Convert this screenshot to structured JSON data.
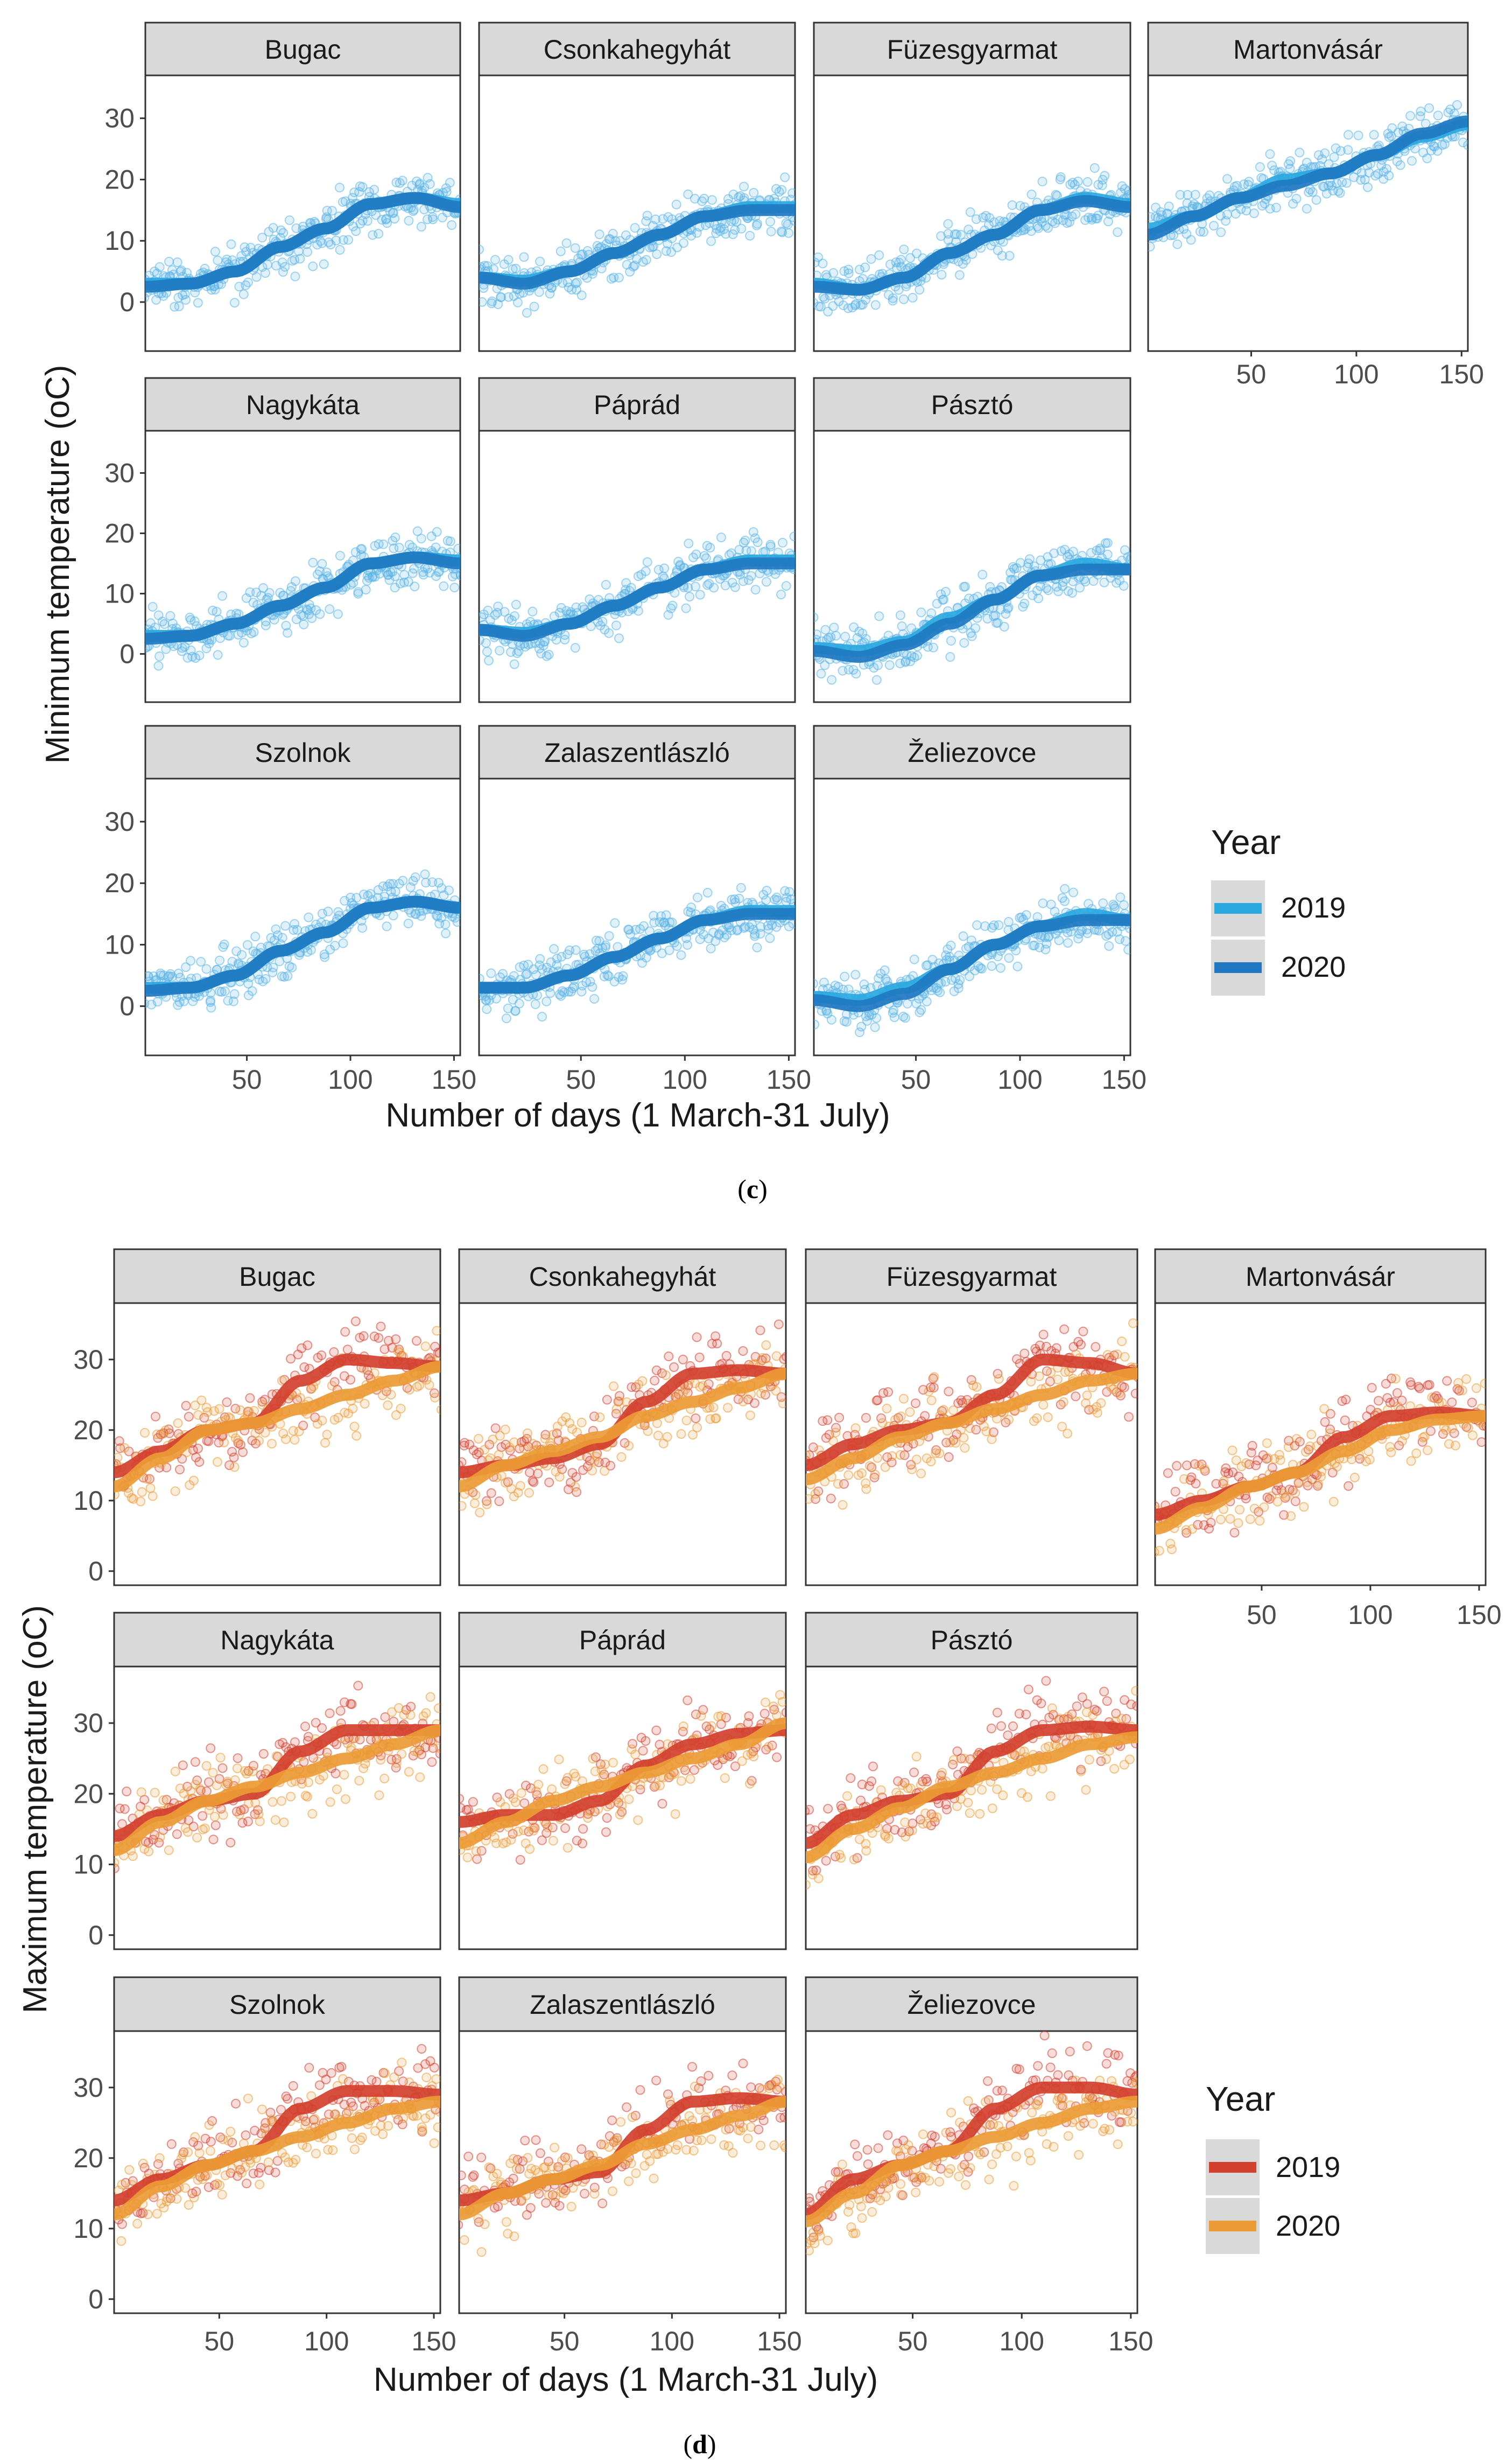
{
  "chart_data": [
    {
      "id": "c",
      "type": "scatter",
      "caption": "c",
      "ylabel": "Minimum temperature (oC)",
      "xlabel": "Number of days (1 March-31 July)",
      "x_ticks": [
        50,
        100,
        150
      ],
      "y_ticks": [
        0,
        10,
        20,
        30
      ],
      "xlim": [
        1,
        153
      ],
      "ylim": [
        -8,
        37
      ],
      "legend": {
        "title": "Year",
        "entries": [
          {
            "label": "2019",
            "color": "#29a8e0"
          },
          {
            "label": "2020",
            "color": "#1f78c1"
          }
        ]
      },
      "point_color": "#5bb4e5",
      "panels": [
        {
          "name": "Bugac",
          "series": [
            {
              "year": "2019",
              "smooth": [
                3,
                3,
                5,
                9,
                12,
                16,
                17,
                16
              ]
            },
            {
              "year": "2020",
              "smooth": [
                2.5,
                3,
                5,
                9,
                12,
                16,
                17,
                15.5
              ]
            }
          ]
        },
        {
          "name": "Csonkahegyhát",
          "series": [
            {
              "year": "2019",
              "smooth": [
                4,
                3.5,
                5,
                8,
                11,
                14,
                15.5,
                15.5
              ]
            },
            {
              "year": "2020",
              "smooth": [
                4,
                3,
                5,
                8,
                11,
                14,
                15,
                15
              ]
            }
          ]
        },
        {
          "name": "Füzesgyarmat",
          "series": [
            {
              "year": "2019",
              "smooth": [
                3,
                2,
                4,
                8,
                11,
                15,
                17,
                16
              ]
            },
            {
              "year": "2020",
              "smooth": [
                2.5,
                2,
                4,
                8,
                11,
                15,
                16.5,
                15.5
              ]
            }
          ]
        },
        {
          "name": "Martonvásár",
          "series": [
            {
              "year": "2019",
              "smooth": [
                12,
                14,
                17,
                20,
                21,
                24,
                27,
                29
              ]
            },
            {
              "year": "2020",
              "smooth": [
                11,
                14,
                17,
                19,
                21,
                24,
                27.5,
                29.5
              ]
            }
          ]
        },
        {
          "name": "Nagykáta",
          "series": [
            {
              "year": "2019",
              "smooth": [
                3,
                3,
                5,
                8,
                11,
                15,
                16,
                15.5
              ]
            },
            {
              "year": "2020",
              "smooth": [
                2.5,
                3,
                5,
                8,
                11,
                15,
                16,
                15
              ]
            }
          ]
        },
        {
          "name": "Páprád",
          "series": [
            {
              "year": "2019",
              "smooth": [
                4,
                3.5,
                5,
                8,
                11,
                14,
                15.5,
                15.5
              ]
            },
            {
              "year": "2020",
              "smooth": [
                4,
                3,
                5,
                8,
                11,
                14,
                15,
                15
              ]
            }
          ]
        },
        {
          "name": "Pásztó",
          "series": [
            {
              "year": "2019",
              "smooth": [
                1,
                0.5,
                2,
                6,
                9,
                13,
                15,
                14
              ]
            },
            {
              "year": "2020",
              "smooth": [
                0.5,
                -0.5,
                1.5,
                5,
                9,
                13,
                14,
                14
              ]
            }
          ]
        },
        {
          "name": "Szolnok",
          "series": [
            {
              "year": "2019",
              "smooth": [
                3,
                3,
                5,
                9,
                12,
                16,
                17,
                16
              ]
            },
            {
              "year": "2020",
              "smooth": [
                2.5,
                3,
                5,
                9,
                12,
                16,
                17,
                16
              ]
            }
          ]
        },
        {
          "name": "Zalaszentlászló",
          "series": [
            {
              "year": "2019",
              "smooth": [
                3,
                3,
                5,
                8,
                11,
                14,
                15.5,
                15.5
              ]
            },
            {
              "year": "2020",
              "smooth": [
                3,
                3,
                5,
                8,
                11,
                14,
                15,
                15
              ]
            }
          ]
        },
        {
          "name": "Želiezovce",
          "series": [
            {
              "year": "2019",
              "smooth": [
                1.5,
                1,
                3,
                6,
                10,
                13,
                15,
                14
              ]
            },
            {
              "year": "2020",
              "smooth": [
                1,
                0,
                2,
                6,
                10,
                13,
                14,
                14
              ]
            }
          ]
        }
      ]
    },
    {
      "id": "d",
      "type": "scatter",
      "caption": "d",
      "ylabel": "Maximum temperature (oC)",
      "xlabel": "Number of days (1 March-31 July)",
      "x_ticks": [
        50,
        100,
        150
      ],
      "y_ticks": [
        0,
        10,
        20,
        30
      ],
      "xlim": [
        1,
        153
      ],
      "ylim": [
        -2,
        38
      ],
      "legend": {
        "title": "Year",
        "entries": [
          {
            "label": "2019",
            "color": "#d23f2e"
          },
          {
            "label": "2020",
            "color": "#eb9b35"
          }
        ]
      },
      "point_color": "#e07a5a",
      "panels": [
        {
          "name": "Bugac",
          "series": [
            {
              "year": "2019",
              "smooth": [
                14,
                17,
                20,
                21,
                27,
                30,
                29.5,
                29
              ]
            },
            {
              "year": "2020",
              "smooth": [
                12,
                16,
                20,
                21,
                23,
                25,
                27,
                29
              ]
            }
          ]
        },
        {
          "name": "Csonkahegyhát",
          "series": [
            {
              "year": "2019",
              "smooth": [
                14,
                15,
                16,
                18,
                24,
                28,
                28.5,
                28
              ]
            },
            {
              "year": "2020",
              "smooth": [
                12,
                15,
                17,
                19,
                22,
                24,
                26,
                28
              ]
            }
          ]
        },
        {
          "name": "Füzesgyarmat",
          "series": [
            {
              "year": "2019",
              "smooth": [
                15,
                18,
                20,
                21,
                25,
                30,
                29.5,
                28
              ]
            },
            {
              "year": "2020",
              "smooth": [
                13,
                16,
                19,
                21,
                23,
                25,
                27,
                28
              ]
            }
          ]
        },
        {
          "name": "Martonvásár",
          "series": [
            {
              "year": "2019",
              "smooth": [
                8,
                10,
                12,
                14,
                19,
                22,
                22.5,
                22
              ]
            },
            {
              "year": "2020",
              "smooth": [
                6,
                9,
                12,
                14,
                17,
                20,
                21.5,
                22
              ]
            }
          ]
        },
        {
          "name": "Nagykáta",
          "series": [
            {
              "year": "2019",
              "smooth": [
                14,
                17,
                19,
                20,
                26,
                29,
                29,
                29
              ]
            },
            {
              "year": "2020",
              "smooth": [
                12,
                16,
                19,
                21,
                23,
                25,
                27,
                29
              ]
            }
          ]
        },
        {
          "name": "Páprád",
          "series": [
            {
              "year": "2019",
              "smooth": [
                16,
                17,
                17,
                19,
                24,
                27,
                28.5,
                29
              ]
            },
            {
              "year": "2020",
              "smooth": [
                13,
                16,
                19,
                21,
                23,
                25,
                27,
                30
              ]
            }
          ]
        },
        {
          "name": "Pásztó",
          "series": [
            {
              "year": "2019",
              "smooth": [
                13,
                17,
                19,
                20,
                26,
                29,
                29.5,
                29
              ]
            },
            {
              "year": "2020",
              "smooth": [
                11,
                15,
                18,
                21,
                23,
                25,
                27,
                28
              ]
            }
          ]
        },
        {
          "name": "Szolnok",
          "series": [
            {
              "year": "2019",
              "smooth": [
                14,
                17,
                19,
                21,
                27,
                29.5,
                29.5,
                29
              ]
            },
            {
              "year": "2020",
              "smooth": [
                12,
                16,
                19,
                21,
                23,
                25,
                27,
                28
              ]
            }
          ]
        },
        {
          "name": "Zalaszentlászló",
          "series": [
            {
              "year": "2019",
              "smooth": [
                14,
                15,
                17,
                18,
                24,
                28,
                28.5,
                28
              ]
            },
            {
              "year": "2020",
              "smooth": [
                12,
                15,
                17,
                19,
                22,
                24,
                26,
                28
              ]
            }
          ]
        },
        {
          "name": "Želiezovce",
          "series": [
            {
              "year": "2019",
              "smooth": [
                12,
                17,
                19,
                21,
                27,
                30,
                30,
                29
              ]
            },
            {
              "year": "2020",
              "smooth": [
                11,
                15,
                19,
                21,
                23,
                25,
                27,
                28
              ]
            }
          ]
        }
      ]
    }
  ]
}
